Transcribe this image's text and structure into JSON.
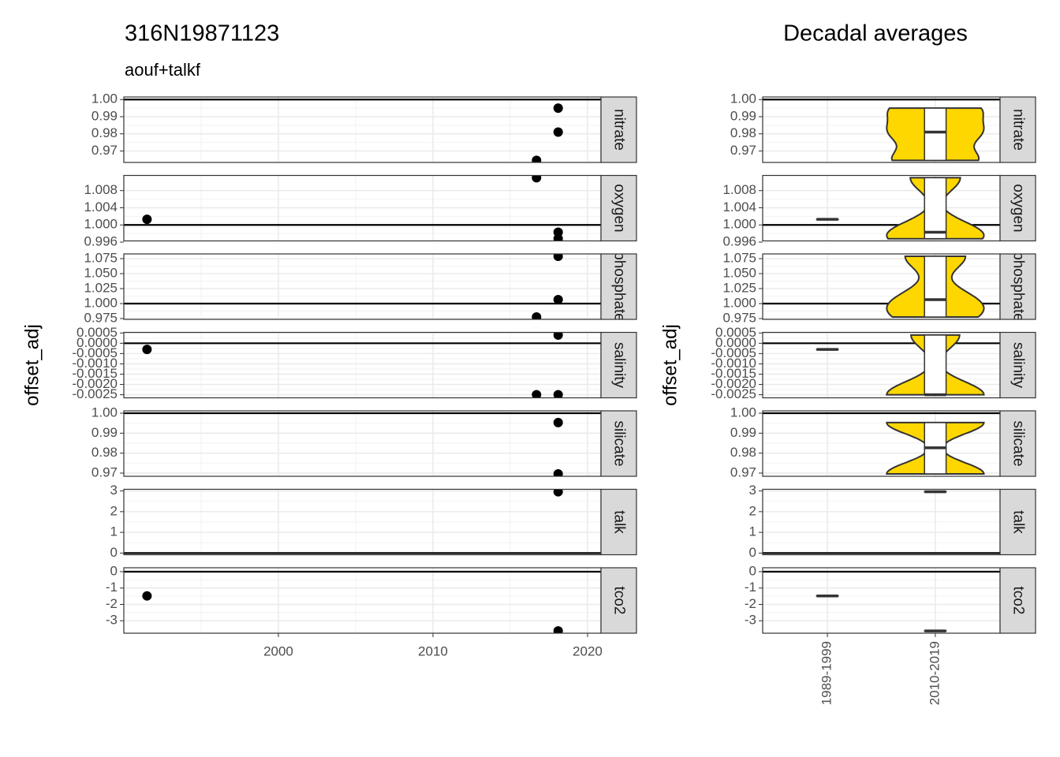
{
  "chart_data": {
    "type": "facet-scatter-violin",
    "title": "316N19871123",
    "subtitle": "aouf+talkf",
    "ylabel": "offset_adj",
    "right_title": "Decadal averages",
    "xlim": [
      1990,
      2020.87
    ],
    "xticks": [
      2000,
      2010,
      2020
    ],
    "categories": [
      "1989-1999",
      "2010-2019"
    ],
    "violin_color": "#ffd700",
    "facets": [
      {
        "name": "nitrate",
        "ylim": [
          0.9633,
          1.0015
        ],
        "yticks": [
          {
            "value": 1,
            "label": "1.00"
          },
          0.99,
          0.98,
          0.97
        ],
        "hline": 1,
        "x": [
          2018.1,
          2018.1,
          2016.7
        ],
        "y": [
          0.995,
          0.981,
          0.9645
        ],
        "decadal": [
          null,
          [
            0.9645,
            0.981,
            0.995
          ]
        ]
      },
      {
        "name": "oxygen",
        "ylim": [
          0.99628,
          1.01153
        ],
        "yticks": [
          1.008,
          1.004,
          {
            "value": 1,
            "label": "1.000"
          },
          0.996
        ],
        "hline": 1,
        "x": [
          1991.5,
          2016.7,
          2018.1,
          2018.1
        ],
        "y": [
          1.0013,
          1.011,
          0.9983,
          0.9968
        ],
        "decadal": [
          [
            1.0013,
            1.0013,
            1.0013
          ],
          [
            0.9968,
            0.9983,
            1.011
          ]
        ]
      },
      {
        "name": "phosphate",
        "ylim": [
          0.9737,
          1.0829
        ],
        "yticks": [
          1.075,
          {
            "value": 1.05,
            "label": "1.050"
          },
          1.025,
          {
            "value": 1,
            "label": "1.000"
          },
          0.975
        ],
        "hline": 1,
        "x": [
          2018.1,
          2018.1,
          2016.7
        ],
        "y": [
          1.079,
          1.0066,
          0.9776
        ],
        "decadal": [
          null,
          [
            0.9776,
            1.0066,
            1.079
          ]
        ]
      },
      {
        "name": "salinity",
        "ylim": [
          -0.00265,
          0.00053
        ],
        "yticks": [
          0.0005,
          {
            "value": 0,
            "label": "0.0000"
          },
          -0.0005,
          {
            "value": -0.001,
            "label": "-0.0010"
          },
          -0.0015,
          {
            "value": -0.002,
            "label": "-0.0020"
          },
          -0.0025
        ],
        "hline": 0,
        "x": [
          1991.5,
          2018.1,
          2016.7,
          2018.1
        ],
        "y": [
          -0.0003,
          0.0004,
          -0.0025,
          -0.0025
        ],
        "decadal": [
          [
            -0.0003,
            -0.0003,
            -0.0003
          ],
          [
            -0.0025,
            -0.0025,
            0.0004
          ]
        ]
      },
      {
        "name": "silicate",
        "ylim": [
          0.9684,
          1.0012
        ],
        "yticks": [
          {
            "value": 1,
            "label": "1.00"
          },
          0.99,
          0.98,
          0.97
        ],
        "hline": 1,
        "x": [
          2018.1,
          2018.1
        ],
        "y": [
          0.9953,
          0.9696
        ],
        "decadal": [
          null,
          [
            0.9696,
            0.9827,
            0.9953
          ]
        ]
      },
      {
        "name": "talk",
        "ylim": [
          -0.08,
          3.08
        ],
        "yticks": [
          3,
          2,
          1,
          0
        ],
        "hline": 0,
        "x": [
          2018.1
        ],
        "y": [
          2.96
        ],
        "decadal": [
          null,
          [
            2.96,
            2.96,
            2.96
          ]
        ]
      },
      {
        "name": "tco2",
        "ylim": [
          -3.76,
          0.24
        ],
        "yticks": [
          0,
          -1,
          -2,
          -3
        ],
        "hline": 0,
        "x": [
          1991.5,
          2018.1
        ],
        "y": [
          -1.48,
          -3.62
        ],
        "decadal": [
          [
            -1.48,
            -1.48,
            -1.48
          ],
          [
            -3.62,
            -3.62,
            -3.62
          ]
        ]
      }
    ]
  }
}
